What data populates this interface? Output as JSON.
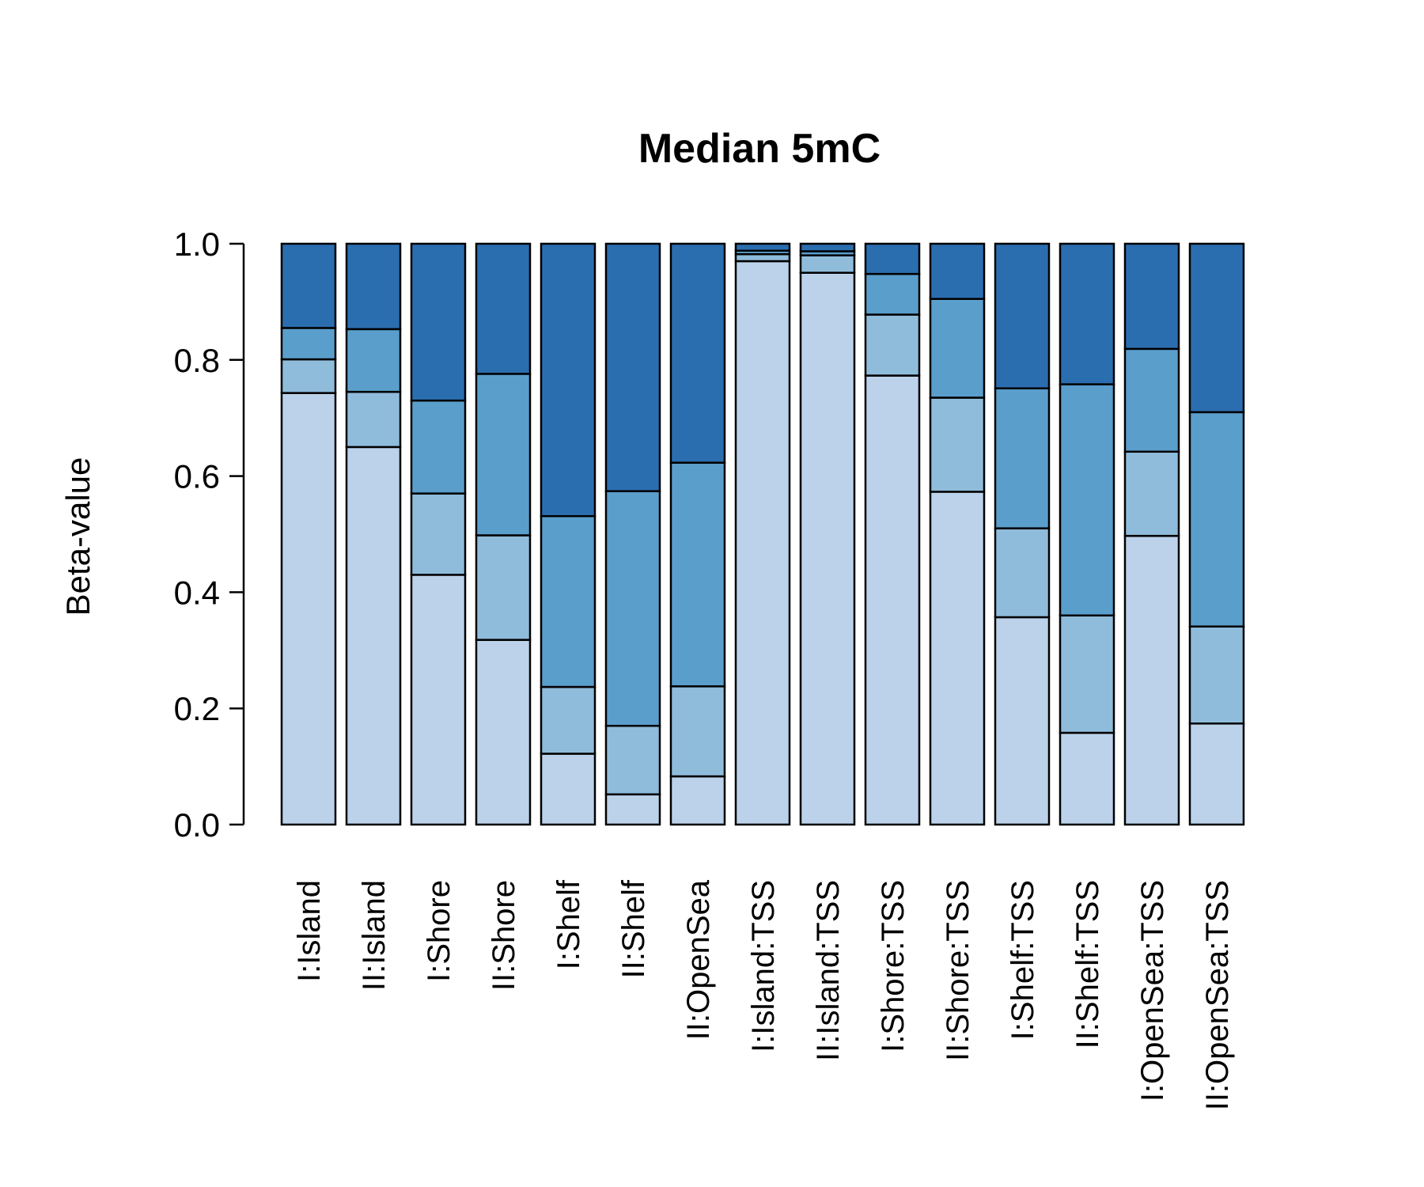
{
  "chart_data": {
    "type": "bar",
    "stacked": true,
    "title": "Median 5mC",
    "xlabel": "",
    "ylabel": "Beta-value",
    "ylim": [
      0,
      1
    ],
    "yticks": [
      "0.0",
      "0.2",
      "0.4",
      "0.6",
      "0.8",
      "1.0"
    ],
    "grid": false,
    "legend": "none",
    "categories": [
      "I:Island",
      "II:Island",
      "I:Shore",
      "II:Shore",
      "I:Shelf",
      "II:Shelf",
      "II:OpenSea",
      "I:Island:TSS",
      "II:Island:TSS",
      "I:Shore:TSS",
      "II:Shore:TSS",
      "I:Shelf:TSS",
      "II:Shelf:TSS",
      "I:OpenSea:TSS",
      "II:OpenSea:TSS"
    ],
    "series": [
      {
        "color": "#bcd2eb",
        "values": [
          0.743,
          0.65,
          0.43,
          0.318,
          0.122,
          0.052,
          0.083,
          0.97,
          0.95,
          0.773,
          0.573,
          0.357,
          0.158,
          0.497,
          0.174
        ]
      },
      {
        "color": "#8fbcdb",
        "values": [
          0.058,
          0.095,
          0.14,
          0.18,
          0.115,
          0.118,
          0.155,
          0.012,
          0.03,
          0.105,
          0.162,
          0.153,
          0.202,
          0.145,
          0.167
        ]
      },
      {
        "color": "#5a9ecc",
        "values": [
          0.054,
          0.108,
          0.16,
          0.278,
          0.294,
          0.404,
          0.385,
          0.006,
          0.007,
          0.07,
          0.17,
          0.241,
          0.398,
          0.177,
          0.369
        ]
      },
      {
        "color": "#2b6eb0",
        "values": [
          0.145,
          0.147,
          0.27,
          0.224,
          0.469,
          0.426,
          0.377,
          0.012,
          0.013,
          0.052,
          0.095,
          0.249,
          0.242,
          0.181,
          0.29
        ]
      }
    ]
  }
}
